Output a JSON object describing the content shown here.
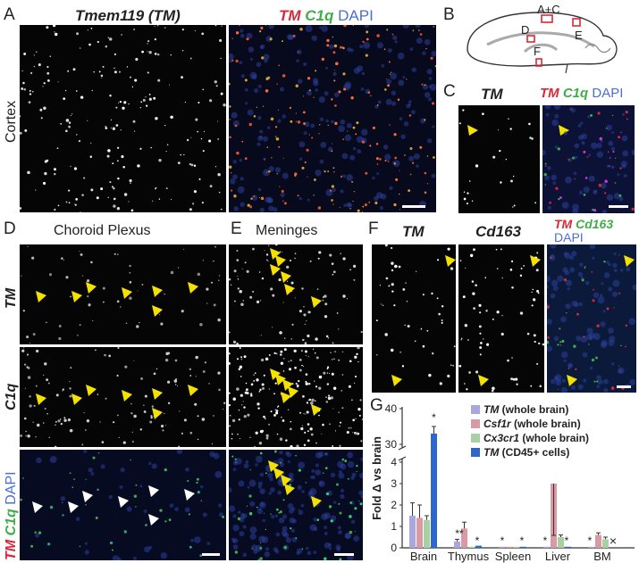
{
  "panels": {
    "A": {
      "label": "A",
      "title_gene": "Tmem119 (TM)",
      "merge": {
        "tm": "TM",
        "c1q": "C1q",
        "dapi": "DAPI"
      },
      "row_label": "Cortex"
    },
    "B": {
      "label": "B",
      "regions": {
        "ac": "A+C",
        "d": "D",
        "e": "E",
        "f": "F"
      }
    },
    "C": {
      "label": "C",
      "title_tm": "TM",
      "merge": {
        "tm": "TM",
        "c1q": "C1q",
        "dapi": "DAPI"
      }
    },
    "D": {
      "label": "D",
      "title": "Choroid Plexus",
      "row_tm": "TM",
      "row_c1q": "C1q",
      "row_merge": {
        "tm": "TM",
        "c1q": "C1q",
        "dapi": "DAPI"
      }
    },
    "E": {
      "label": "E",
      "title": "Meninges"
    },
    "F": {
      "label": "F",
      "title_tm": "TM",
      "title_cd163": "Cd163",
      "merge": {
        "tm": "TM",
        "cd163": "Cd163",
        "dapi": "DAPI"
      }
    },
    "G": {
      "label": "G"
    }
  },
  "chart_data": {
    "type": "bar",
    "categories": [
      "Brain",
      "Thymus",
      "Spleen",
      "Liver",
      "BM"
    ],
    "ylabel": "Fold Δ vs brain",
    "ytick_labels": [
      "0",
      "1",
      "2",
      "3",
      "4",
      "30",
      "40"
    ],
    "axis_break": {
      "lower": [
        0,
        4
      ],
      "upper": [
        30,
        40
      ]
    },
    "series": [
      {
        "name_gene": "TM",
        "name_rest": "(whole brain)",
        "color": "#a9a7dd",
        "values": [
          1.5,
          0.3,
          0.05,
          0.05,
          0.05
        ],
        "errors": [
          0.6,
          0.1,
          0.02,
          0.02,
          0.02
        ]
      },
      {
        "name_gene": "Csf1r",
        "name_rest": "(whole brain)",
        "color": "#d99aa6",
        "values": [
          1.4,
          0.9,
          0.05,
          3.0,
          0.6
        ],
        "errors": [
          0.6,
          0.3,
          0.02,
          1.5,
          0.1
        ]
      },
      {
        "name_gene": "Cx3cr1",
        "name_rest": "(whole brain)",
        "color": "#a8d1a3",
        "values": [
          1.3,
          0.05,
          0.05,
          0.5,
          0.4
        ],
        "errors": [
          0.2,
          0.02,
          0.02,
          0.1,
          0.1
        ]
      },
      {
        "name_gene": "TM",
        "name_rest": "(CD45+ cells)",
        "color": "#2f66c9",
        "values": [
          33,
          0.1,
          0.05,
          0.05,
          null
        ],
        "errors": [
          2,
          0.05,
          0.02,
          0.02,
          null
        ]
      }
    ],
    "annotations": {
      "star": "*",
      "dstar": "**",
      "cross": "×"
    }
  }
}
